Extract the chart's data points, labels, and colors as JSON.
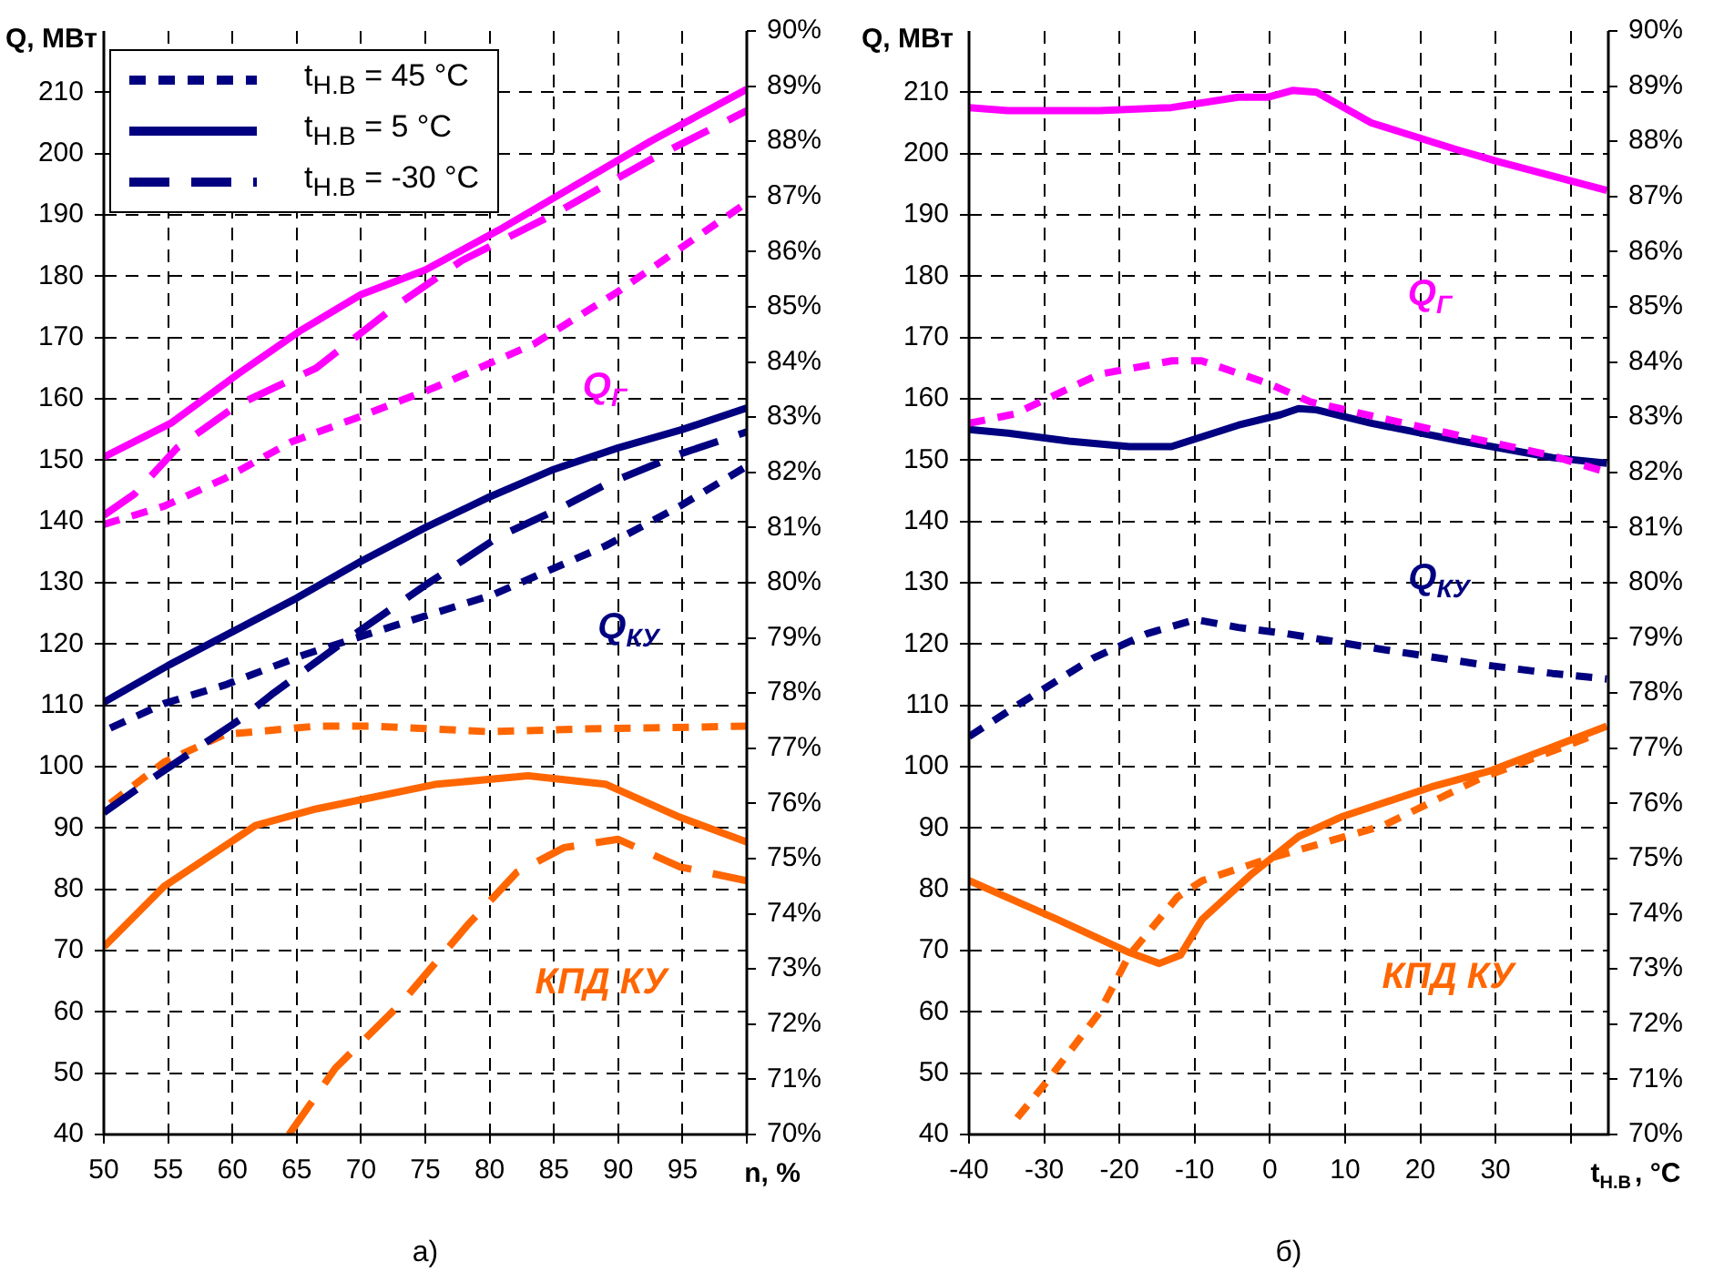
{
  "chart_data": [
    {
      "type": "line",
      "title": "а)",
      "xlabel": "n, %",
      "ylabel": "Q, МВт",
      "xlim": [
        50,
        100
      ],
      "xticks": [
        50,
        55,
        60,
        65,
        70,
        75,
        80,
        85,
        90,
        95,
        {
          "value": 100,
          "label": null
        }
      ],
      "ylim": [
        40,
        220
      ],
      "yticks": [
        40,
        50,
        60,
        70,
        80,
        90,
        100,
        110,
        120,
        130,
        140,
        150,
        160,
        170,
        180,
        190,
        200,
        210
      ],
      "y2lim": [
        70,
        90
      ],
      "y2ticks": [
        {
          "value": 70,
          "label": "70%"
        },
        {
          "value": 71,
          "label": "71%"
        },
        {
          "value": 72,
          "label": "72%"
        },
        {
          "value": 73,
          "label": "73%"
        },
        {
          "value": 74,
          "label": "74%"
        },
        {
          "value": 75,
          "label": "75%"
        },
        {
          "value": 76,
          "label": "76%"
        },
        {
          "value": 77,
          "label": "77%"
        },
        {
          "value": 78,
          "label": "78%"
        },
        {
          "value": 79,
          "label": "79%"
        },
        {
          "value": 80,
          "label": "80%"
        },
        {
          "value": 81,
          "label": "81%"
        },
        {
          "value": 82,
          "label": "82%"
        },
        {
          "value": 83,
          "label": "83%"
        },
        {
          "value": 84,
          "label": "84%"
        },
        {
          "value": 85,
          "label": "85%"
        },
        {
          "value": 86,
          "label": "86%"
        },
        {
          "value": 87,
          "label": "87%"
        },
        {
          "value": 88,
          "label": "88%"
        },
        {
          "value": 89,
          "label": "89%"
        },
        {
          "value": 90,
          "label": "90%"
        }
      ],
      "grid": true,
      "legend": "top left",
      "marker": "none",
      "series": [
        {
          "color": "#ff00ff",
          "line_style": "dotted",
          "x": [
            50,
            54.7,
            59.4,
            64.6,
            69.8,
            75.9,
            83.5,
            90,
            94.8,
            100
          ],
          "values": [
            139.5,
            142.5,
            147,
            153,
            157,
            162,
            169,
            177.5,
            184.5,
            192
          ]
        },
        {
          "color": "#ff00ff",
          "line_style": "solid",
          "x": [
            50,
            55.2,
            60.4,
            65.2,
            70,
            75,
            80.7,
            86.8,
            92.5,
            100
          ],
          "values": [
            150.5,
            156,
            164,
            171,
            177,
            181,
            187.5,
            195,
            202,
            210.5
          ]
        },
        {
          "color": "#ff00ff",
          "line_style": "dashed",
          "x": [
            50,
            52.4,
            55.7,
            60.4,
            66.5,
            72.6,
            77.8,
            84.9,
            92.5,
            100
          ],
          "values": [
            141,
            144.5,
            152,
            159,
            165,
            175,
            182.5,
            190,
            199,
            207
          ]
        },
        {
          "name": "t$_{Н.В}$ = 45 °C",
          "color": "#000080",
          "line_style": "dotted",
          "x": [
            50.5,
            54.7,
            59.4,
            65.5,
            72.6,
            80.2,
            83.5,
            89,
            94.8,
            100
          ],
          "values": [
            106.3,
            110.3,
            113.3,
            118.2,
            123,
            128,
            131,
            136,
            142.5,
            149
          ]
        },
        {
          "name": "t$_{Н.В}$ = 5 °C",
          "color": "#000080",
          "line_style": "solid",
          "x": [
            50,
            55,
            60,
            65,
            70,
            75,
            80,
            85,
            90,
            95,
            100
          ],
          "values": [
            110.5,
            116.5,
            122,
            127.5,
            133.5,
            139,
            144,
            148.5,
            152,
            155,
            158.5
          ]
        },
        {
          "name": "t$_{Н.В}$ = -30 °C",
          "color": "#000080",
          "line_style": "dashed",
          "x": [
            50,
            53.3,
            60.8,
            63.2,
            68.4,
            75,
            80.7,
            85.8,
            89,
            94.8,
            100
          ],
          "values": [
            92.5,
            97.4,
            108,
            112,
            120,
            129.6,
            137.5,
            142.5,
            146,
            151,
            154.6
          ]
        },
        {
          "color": "#ff6600",
          "line_style": "dotted",
          "axis": "y2",
          "x": [
            50.5,
            54.7,
            59.4,
            66.5,
            71,
            80,
            87.3,
            100
          ],
          "values": [
            76,
            76.75,
            77.25,
            77.4,
            77.4,
            77.3,
            77.35,
            77.4
          ]
        },
        {
          "color": "#ff6600",
          "line_style": "solid",
          "axis": "y2",
          "x": [
            50,
            54.7,
            61.8,
            66.5,
            75.9,
            83,
            89,
            94.8,
            100
          ],
          "values": [
            73.4,
            74.5,
            75.6,
            75.9,
            76.35,
            76.5,
            76.35,
            75.75,
            75.3
          ]
        },
        {
          "color": "#ff6600",
          "line_style": "dashed",
          "axis": "y2",
          "x": [
            64.4,
            68,
            73.2,
            78.3,
            82.1,
            85.8,
            90,
            94.8,
            100
          ],
          "values": [
            70,
            71.2,
            72.4,
            73.8,
            74.75,
            75.2,
            75.35,
            74.85,
            74.6
          ]
        }
      ],
      "annotations": [
        "Q$_{Г}$",
        "Q$_{КУ}$",
        "КПД КУ"
      ]
    },
    {
      "type": "line",
      "title": "б)",
      "xlabel": "t$_{Н.В}$, °C",
      "ylabel": "Q, МВт",
      "xlim": [
        -40,
        45
      ],
      "xticks": [
        -40,
        -30,
        -20,
        -10,
        0,
        10,
        20,
        30,
        {
          "value": 40,
          "label": null
        }
      ],
      "ylim": [
        40,
        220
      ],
      "yticks": [
        40,
        50,
        60,
        70,
        80,
        90,
        100,
        110,
        120,
        130,
        140,
        150,
        160,
        170,
        180,
        190,
        200,
        210
      ],
      "y2lim": [
        70,
        90
      ],
      "y2ticks": [
        {
          "value": 70,
          "label": "70%"
        },
        {
          "value": 71,
          "label": "71%"
        },
        {
          "value": 72,
          "label": "72%"
        },
        {
          "value": 73,
          "label": "73%"
        },
        {
          "value": 74,
          "label": "74%"
        },
        {
          "value": 75,
          "label": "75%"
        },
        {
          "value": 76,
          "label": "76%"
        },
        {
          "value": 77,
          "label": "77%"
        },
        {
          "value": 78,
          "label": "78%"
        },
        {
          "value": 79,
          "label": "79%"
        },
        {
          "value": 80,
          "label": "80%"
        },
        {
          "value": 81,
          "label": "81%"
        },
        {
          "value": 82,
          "label": "82%"
        },
        {
          "value": 83,
          "label": "83%"
        },
        {
          "value": 84,
          "label": "84%"
        },
        {
          "value": 85,
          "label": "85%"
        },
        {
          "value": 86,
          "label": "86%"
        },
        {
          "value": 87,
          "label": "87%"
        },
        {
          "value": 88,
          "label": "88%"
        },
        {
          "value": 89,
          "label": "89%"
        },
        {
          "value": 90,
          "label": "90%"
        }
      ],
      "grid": true,
      "marker": "none",
      "series": [
        {
          "color": "#ff00ff",
          "line_style": "solid",
          "x": [
            -40,
            -34.8,
            -22.7,
            -13.1,
            -4.2,
            -0.2,
            3,
            6.2,
            13.5,
            24.7,
            30.3,
            44.8
          ],
          "values": [
            207.5,
            207,
            207,
            207.5,
            209.2,
            209.2,
            210.3,
            210,
            205,
            200.7,
            198.7,
            194
          ]
        },
        {
          "color": "#ff00ff",
          "line_style": "dotted",
          "x": [
            -40,
            -34,
            -22.7,
            -13,
            -9.1,
            -0.2,
            5.4,
            21.5,
            37.6,
            44.8
          ],
          "values": [
            156,
            157.5,
            164,
            166.2,
            166.2,
            162.5,
            159.5,
            155,
            150.7,
            148
          ]
        },
        {
          "color": "#000080",
          "line_style": "solid",
          "x": [
            -40,
            -34.8,
            -26.7,
            -18.7,
            -13.1,
            -4.2,
            1.4,
            3.8,
            6.2,
            13.5,
            25.5,
            37.6,
            44.8
          ],
          "values": [
            155,
            154.4,
            153.1,
            152.2,
            152.2,
            155.7,
            157.4,
            158.4,
            158.2,
            156,
            153.1,
            150.4,
            149.5
          ]
        },
        {
          "color": "#000080",
          "line_style": "dotted",
          "x": [
            -40,
            -33.2,
            -23.5,
            -16.3,
            -9.9,
            -4.2,
            2.2,
            13.5,
            27.9,
            37.6,
            44.8
          ],
          "values": [
            104.9,
            110.3,
            117.7,
            121.7,
            124,
            122.7,
            121.7,
            119.4,
            116.7,
            115.2,
            114.3
          ]
        },
        {
          "color": "#ff6600",
          "line_style": "solid",
          "axis": "y2",
          "x": [
            -40,
            -28.3,
            -18.7,
            -14.7,
            -11.9,
            -9,
            -2.6,
            3.8,
            9.4,
            21.5,
            29.5,
            44.8
          ],
          "values": [
            74.6,
            73.9,
            73.3,
            73.1,
            73.25,
            73.9,
            74.7,
            75.4,
            75.75,
            76.3,
            76.6,
            77.4
          ]
        },
        {
          "color": "#ff6600",
          "line_style": "dotted",
          "axis": "y2",
          "x": [
            -33.6,
            -30,
            -22.7,
            -18.7,
            -12.3,
            -9,
            -0.2,
            6.2,
            15.1,
            27.9,
            42.4
          ],
          "values": [
            70.3,
            70.9,
            72.2,
            73.25,
            74.3,
            74.6,
            75,
            75.25,
            75.6,
            76.45,
            77.2
          ]
        }
      ],
      "annotations": [
        "Q$_{Г}$",
        "Q$_{КУ}$",
        "КПД КУ"
      ]
    }
  ]
}
